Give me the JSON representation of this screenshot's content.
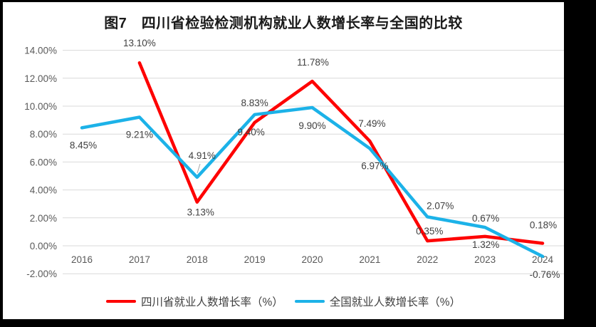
{
  "title": "图7　四川省检验检测机构就业人数增长率与全国的比较",
  "legend": [
    {
      "label": "四川省就业人数增长率（%）",
      "color": "#FE0000"
    },
    {
      "label": "全国就业人数增长率（%）",
      "color": "#1CB2E8"
    }
  ],
  "colors": {
    "frame_bg": "#000000",
    "plot_bg": "#FFFFFF",
    "grid": "#D9D9D9",
    "axis_text": "#595959",
    "label_text": "#404040",
    "leader_line": "#A6A6A6"
  },
  "axis": {
    "yticks": [
      "14.00%",
      "12.00%",
      "10.00%",
      "8.00%",
      "6.00%",
      "4.00%",
      "2.00%",
      "0.00%",
      "-2.00%"
    ],
    "xticks": [
      "2016",
      "2017",
      "2018",
      "2019",
      "2020",
      "2021",
      "2022",
      "2023",
      "2024"
    ]
  },
  "chart_data": {
    "type": "line",
    "title": "图7　四川省检验检测机构就业人数增长率与全国的比较",
    "x": [
      2016,
      2017,
      2018,
      2019,
      2020,
      2021,
      2022,
      2023,
      2024
    ],
    "series": [
      {
        "name": "四川省就业人数增长率（%）",
        "color": "#FE0000",
        "values": [
          null,
          13.1,
          3.13,
          8.83,
          11.78,
          7.49,
          0.35,
          0.67,
          0.18
        ],
        "labels": [
          null,
          "13.10%",
          "3.13%",
          "8.83%",
          "11.78%",
          "7.49%",
          "0.35%",
          "0.67%",
          "0.18%"
        ]
      },
      {
        "name": "全国就业人数增长率（%）",
        "color": "#1CB2E8",
        "values": [
          8.45,
          9.21,
          4.91,
          9.4,
          9.9,
          6.97,
          2.07,
          1.32,
          -0.76
        ],
        "labels": [
          "8.45%",
          "9.21%",
          "4.91%",
          "9.40%",
          "9.90%",
          "6.97%",
          "2.07%",
          "1.32%",
          "-0.76%"
        ]
      }
    ],
    "ylim": [
      -2,
      14
    ],
    "ytick_step": 2,
    "ytick_format": "0.00%",
    "grid": true,
    "legend_position": "bottom"
  }
}
